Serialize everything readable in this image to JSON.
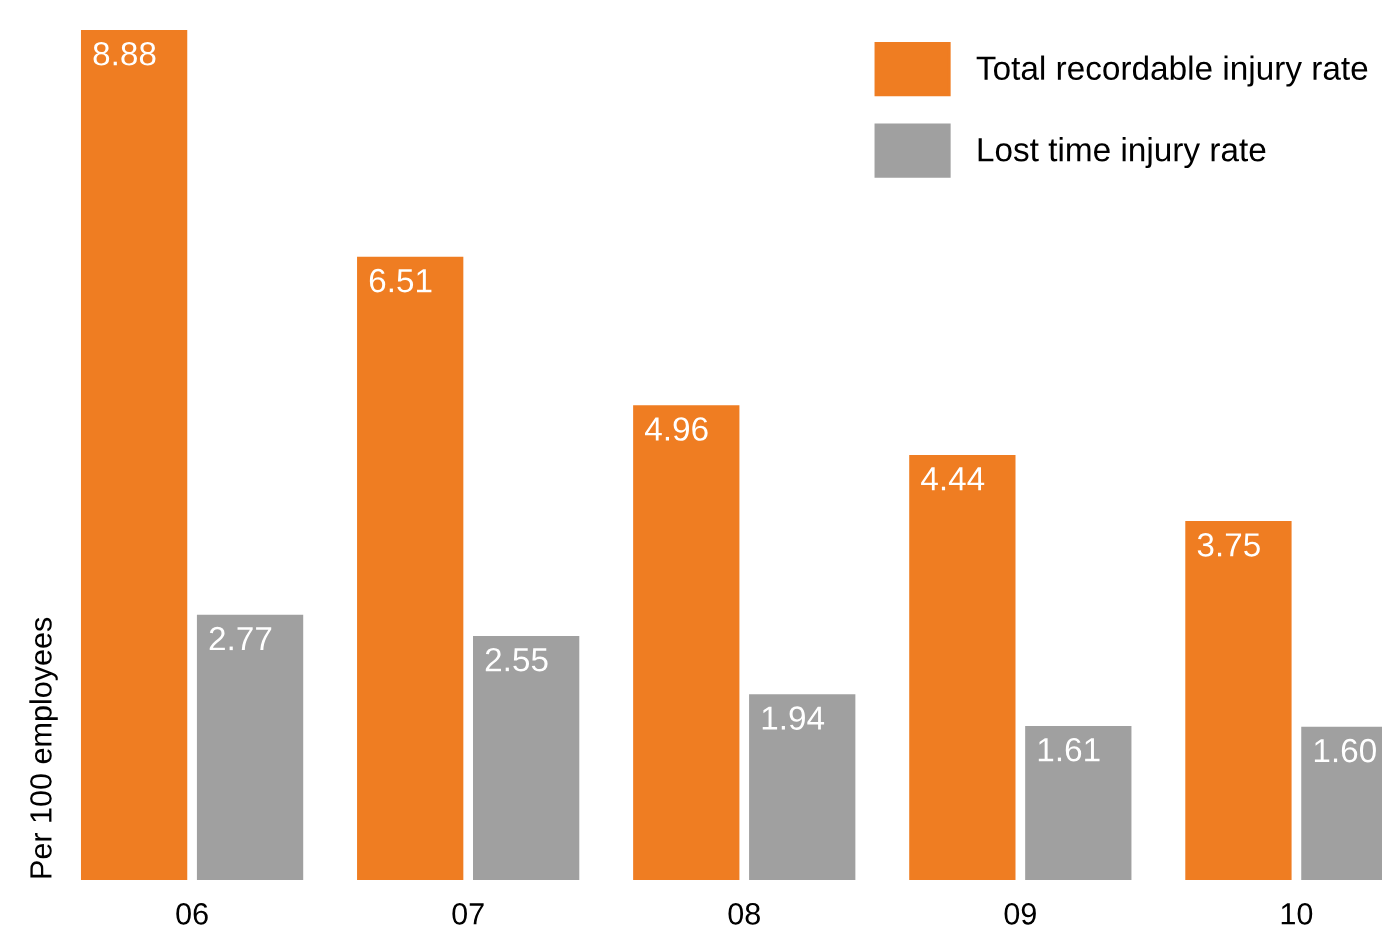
{
  "chart_data": {
    "type": "bar",
    "ylabel": "Per 100 employees",
    "categories": [
      "06",
      "07",
      "08",
      "09",
      "10"
    ],
    "series": [
      {
        "name": "Total recordable injury rate",
        "color": "#ef7d22",
        "values": [
          8.88,
          6.51,
          4.96,
          4.44,
          3.75
        ],
        "value_labels": [
          "8.88",
          "6.51",
          "4.96",
          "4.44",
          "3.75"
        ]
      },
      {
        "name": "Lost time injury rate",
        "color": "#a0a0a0",
        "values": [
          2.77,
          2.55,
          1.94,
          1.61,
          1.6
        ],
        "value_labels": [
          "2.77",
          "2.55",
          "1.94",
          "1.61",
          "1.60"
        ]
      }
    ],
    "ylim": [
      0,
      8.88
    ],
    "legend": "top right",
    "grid": false
  }
}
